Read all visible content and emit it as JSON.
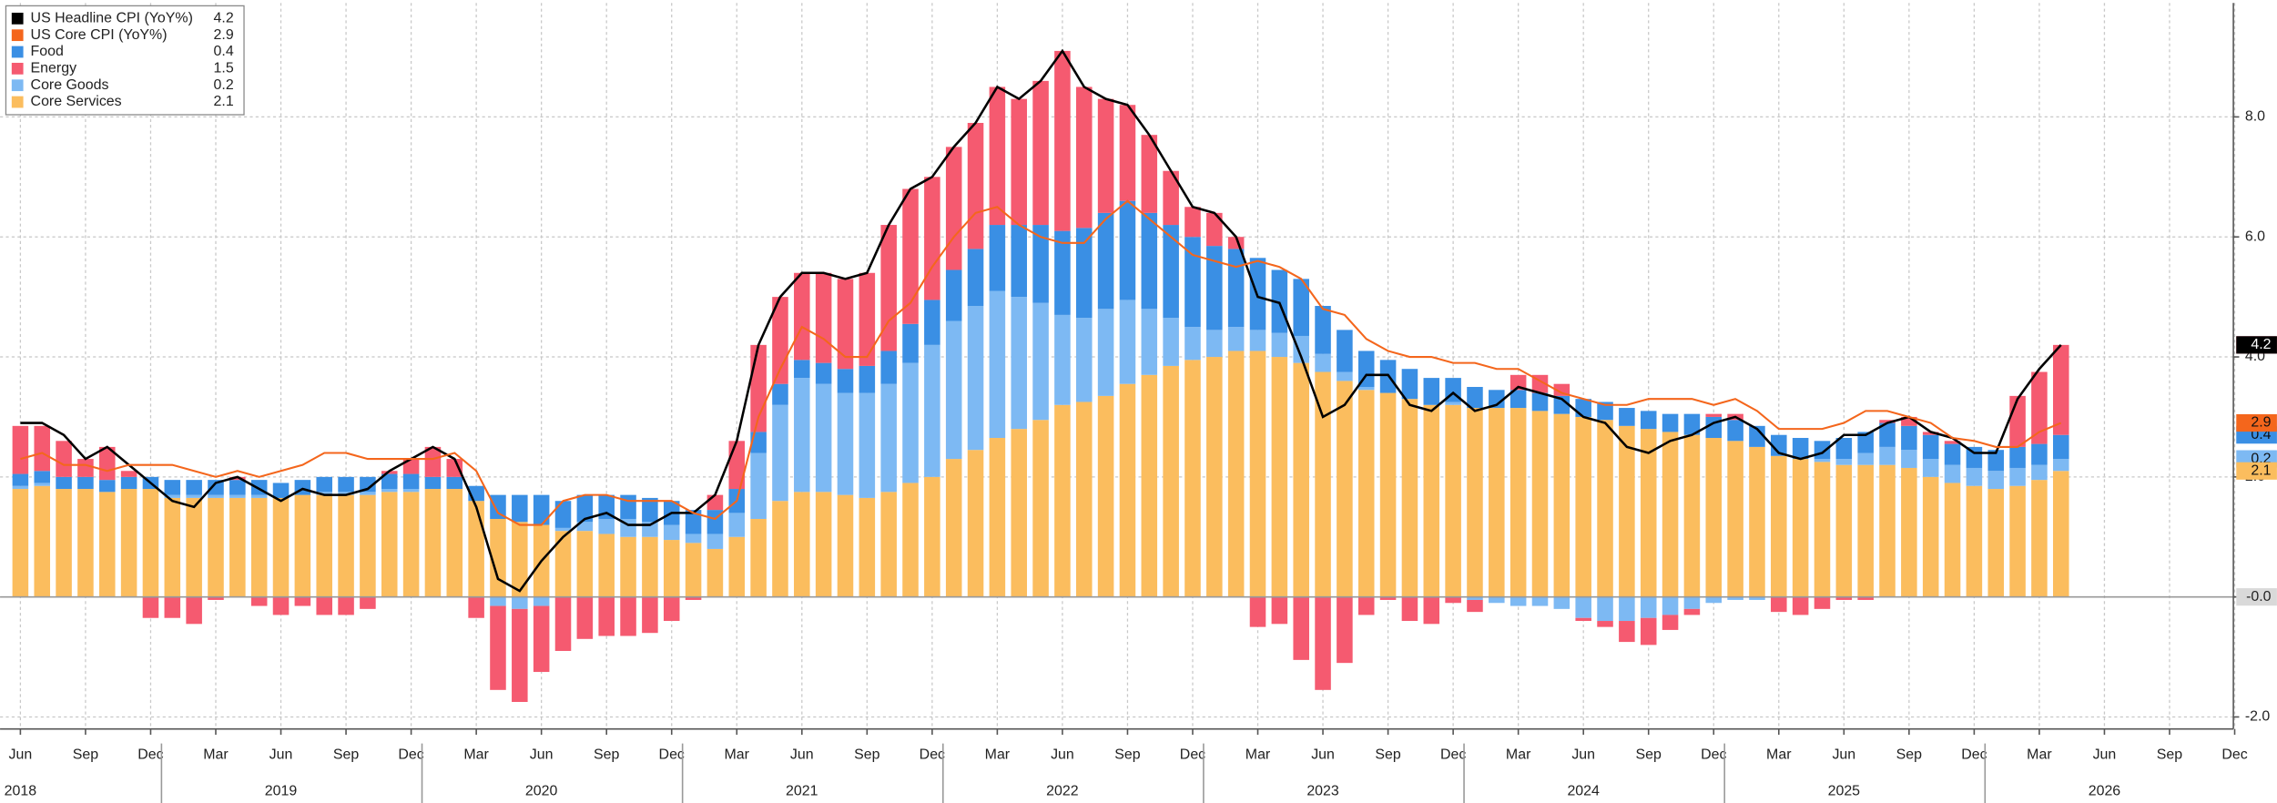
{
  "chart_data": {
    "type": "bar",
    "categories": [
      "2018-06",
      "2018-07",
      "2018-08",
      "2018-09",
      "2018-10",
      "2018-11",
      "2018-12",
      "2019-01",
      "2019-02",
      "2019-03",
      "2019-04",
      "2019-05",
      "2019-06",
      "2019-07",
      "2019-08",
      "2019-09",
      "2019-10",
      "2019-11",
      "2019-12",
      "2020-01",
      "2020-02",
      "2020-03",
      "2020-04",
      "2020-05",
      "2020-06",
      "2020-07",
      "2020-08",
      "2020-09",
      "2020-10",
      "2020-11",
      "2020-12",
      "2021-01",
      "2021-02",
      "2021-03",
      "2021-04",
      "2021-05",
      "2021-06",
      "2021-07",
      "2021-08",
      "2021-09",
      "2021-10",
      "2021-11",
      "2021-12",
      "2022-01",
      "2022-02",
      "2022-03",
      "2022-04",
      "2022-05",
      "2022-06",
      "2022-07",
      "2022-08",
      "2022-09",
      "2022-10",
      "2022-11",
      "2022-12",
      "2023-01",
      "2023-02",
      "2023-03",
      "2023-04",
      "2023-05",
      "2023-06",
      "2023-07",
      "2023-08",
      "2023-09",
      "2023-10",
      "2023-11",
      "2023-12",
      "2024-01",
      "2024-02",
      "2024-03",
      "2024-04",
      "2024-05",
      "2024-06",
      "2024-07",
      "2024-08",
      "2024-09",
      "2024-10",
      "2024-11",
      "2024-12",
      "2025-01",
      "2025-02",
      "2025-03",
      "2025-04",
      "2025-05",
      "2025-06",
      "2025-07",
      "2025-08",
      "2025-09",
      "2025-10",
      "2025-11",
      "2025-12",
      "2026-01",
      "2026-02",
      "2026-03",
      "2026-04",
      "2026-05",
      "2026-06",
      "2026-07",
      "2026-08",
      "2026-09",
      "2026-10",
      "2026-11",
      "2026-12"
    ],
    "series": [
      {
        "name": "US Headline CPI (YoY%)",
        "type": "line",
        "color": "#000000",
        "last_label": "4.2",
        "values": [
          2.9,
          2.9,
          2.7,
          2.3,
          2.5,
          2.2,
          1.9,
          1.6,
          1.5,
          1.9,
          2.0,
          1.8,
          1.6,
          1.8,
          1.7,
          1.7,
          1.8,
          2.1,
          2.3,
          2.5,
          2.3,
          1.5,
          0.3,
          0.1,
          0.6,
          1.0,
          1.3,
          1.4,
          1.2,
          1.2,
          1.4,
          1.4,
          1.7,
          2.6,
          4.2,
          5.0,
          5.4,
          5.4,
          5.3,
          5.4,
          6.2,
          6.8,
          7.0,
          7.5,
          7.9,
          8.5,
          8.3,
          8.6,
          9.1,
          8.5,
          8.3,
          8.2,
          7.7,
          7.1,
          6.5,
          6.4,
          6.0,
          5.0,
          4.9,
          4.0,
          3.0,
          3.2,
          3.7,
          3.7,
          3.2,
          3.1,
          3.4,
          3.1,
          3.2,
          3.5,
          3.4,
          3.3,
          3.0,
          2.9,
          2.5,
          2.4,
          2.6,
          2.7,
          2.9,
          3.0,
          2.8,
          2.4,
          2.3,
          2.4,
          2.7,
          2.7,
          2.9,
          3.0,
          2.75,
          2.65,
          2.4,
          2.4,
          3.3,
          3.8,
          4.2,
          null,
          null,
          null,
          null,
          null,
          null,
          null,
          null
        ]
      },
      {
        "name": "US Core CPI (YoY%)",
        "type": "line",
        "color": "#f4661c",
        "last_label": "2.9",
        "values": [
          2.3,
          2.4,
          2.2,
          2.2,
          2.1,
          2.2,
          2.2,
          2.2,
          2.1,
          2.0,
          2.1,
          2.0,
          2.1,
          2.2,
          2.4,
          2.4,
          2.3,
          2.3,
          2.3,
          2.3,
          2.4,
          2.1,
          1.4,
          1.2,
          1.2,
          1.6,
          1.7,
          1.7,
          1.6,
          1.6,
          1.6,
          1.4,
          1.3,
          1.6,
          3.0,
          3.8,
          4.5,
          4.3,
          4.0,
          4.0,
          4.6,
          4.9,
          5.5,
          6.0,
          6.4,
          6.5,
          6.2,
          6.0,
          5.9,
          5.9,
          6.3,
          6.6,
          6.3,
          6.0,
          5.7,
          5.6,
          5.5,
          5.6,
          5.5,
          5.3,
          4.8,
          4.7,
          4.3,
          4.1,
          4.0,
          4.0,
          3.9,
          3.9,
          3.8,
          3.8,
          3.6,
          3.4,
          3.3,
          3.2,
          3.2,
          3.3,
          3.3,
          3.3,
          3.2,
          3.3,
          3.1,
          2.8,
          2.8,
          2.8,
          2.9,
          3.1,
          3.1,
          3.0,
          2.9,
          2.65,
          2.6,
          2.5,
          2.5,
          2.75,
          2.9,
          null,
          null,
          null,
          null,
          null,
          null,
          null,
          null
        ]
      },
      {
        "name": "Food",
        "type": "bar",
        "color": "#3a8fe4",
        "last_label": "0.4",
        "values": [
          0.2,
          0.2,
          0.2,
          0.2,
          0.2,
          0.2,
          0.2,
          0.25,
          0.25,
          0.25,
          0.25,
          0.25,
          0.25,
          0.25,
          0.25,
          0.25,
          0.25,
          0.25,
          0.25,
          0.2,
          0.2,
          0.25,
          0.4,
          0.45,
          0.5,
          0.45,
          0.45,
          0.4,
          0.4,
          0.4,
          0.4,
          0.4,
          0.4,
          0.4,
          0.35,
          0.35,
          0.3,
          0.35,
          0.4,
          0.45,
          0.55,
          0.65,
          0.75,
          0.85,
          0.95,
          1.1,
          1.2,
          1.3,
          1.4,
          1.5,
          1.6,
          1.65,
          1.6,
          1.55,
          1.5,
          1.4,
          1.3,
          1.2,
          1.05,
          0.95,
          0.8,
          0.7,
          0.6,
          0.55,
          0.5,
          0.45,
          0.4,
          0.35,
          0.3,
          0.3,
          0.3,
          0.3,
          0.3,
          0.3,
          0.3,
          0.3,
          0.3,
          0.35,
          0.35,
          0.35,
          0.35,
          0.35,
          0.35,
          0.3,
          0.35,
          0.35,
          0.4,
          0.4,
          0.4,
          0.35,
          0.35,
          0.35,
          0.35,
          0.35,
          0.4,
          null,
          null,
          null,
          null,
          null,
          null,
          null,
          null
        ]
      },
      {
        "name": "Energy",
        "type": "bar",
        "color": "#f55a70",
        "last_label": "1.5",
        "values": [
          0.8,
          0.75,
          0.6,
          0.3,
          0.55,
          0.1,
          -0.35,
          -0.35,
          -0.45,
          -0.05,
          0.05,
          -0.15,
          -0.3,
          -0.15,
          -0.3,
          -0.3,
          -0.2,
          0.05,
          0.25,
          0.5,
          0.3,
          -0.35,
          -1.4,
          -1.55,
          -1.1,
          -0.9,
          -0.7,
          -0.65,
          -0.65,
          -0.6,
          -0.4,
          -0.05,
          0.25,
          0.8,
          1.45,
          1.45,
          1.45,
          1.5,
          1.5,
          1.55,
          2.1,
          2.25,
          2.05,
          2.05,
          2.1,
          2.3,
          2.1,
          2.4,
          3.0,
          2.35,
          1.9,
          1.6,
          1.3,
          0.9,
          0.5,
          0.55,
          0.2,
          -0.5,
          -0.45,
          -1.05,
          -1.55,
          -1.1,
          -0.3,
          -0.05,
          -0.4,
          -0.45,
          -0.1,
          -0.2,
          0.0,
          0.25,
          0.3,
          0.2,
          -0.05,
          -0.1,
          -0.35,
          -0.45,
          -0.25,
          -0.1,
          0.05,
          0.1,
          0.0,
          -0.25,
          -0.3,
          -0.2,
          -0.05,
          -0.05,
          0.05,
          0.15,
          0.05,
          0.05,
          0.0,
          0.0,
          0.85,
          1.2,
          1.5,
          null,
          null,
          null,
          null,
          null,
          null,
          null,
          null
        ]
      },
      {
        "name": "Core Goods",
        "type": "bar",
        "color": "#7db9f3",
        "last_label": "0.2",
        "values": [
          0.05,
          0.05,
          0.0,
          0.0,
          0.0,
          0.0,
          0.0,
          0.05,
          0.05,
          0.05,
          0.05,
          0.05,
          0.0,
          0.0,
          0.05,
          0.05,
          0.05,
          0.05,
          0.05,
          0.0,
          0.0,
          0.0,
          -0.15,
          -0.2,
          -0.15,
          0.05,
          0.15,
          0.25,
          0.3,
          0.25,
          0.25,
          0.15,
          0.25,
          0.4,
          1.1,
          1.6,
          1.9,
          1.8,
          1.7,
          1.75,
          1.8,
          2.0,
          2.2,
          2.3,
          2.4,
          2.45,
          2.2,
          1.95,
          1.5,
          1.4,
          1.45,
          1.4,
          1.1,
          0.8,
          0.55,
          0.45,
          0.4,
          0.35,
          0.4,
          0.45,
          0.3,
          0.15,
          0.05,
          0.0,
          0.0,
          0.0,
          0.05,
          -0.05,
          -0.1,
          -0.15,
          -0.15,
          -0.2,
          -0.35,
          -0.4,
          -0.4,
          -0.35,
          -0.3,
          -0.2,
          -0.1,
          -0.05,
          -0.05,
          0.0,
          0.0,
          0.05,
          0.1,
          0.2,
          0.3,
          0.3,
          0.3,
          0.3,
          0.3,
          0.3,
          0.3,
          0.25,
          0.2,
          null,
          null,
          null,
          null,
          null,
          null,
          null,
          null
        ]
      },
      {
        "name": "Core Services",
        "type": "bar",
        "color": "#fbbd5e",
        "last_label": "2.1",
        "values": [
          1.8,
          1.85,
          1.8,
          1.8,
          1.75,
          1.8,
          1.8,
          1.65,
          1.65,
          1.65,
          1.65,
          1.65,
          1.65,
          1.7,
          1.7,
          1.7,
          1.7,
          1.75,
          1.75,
          1.8,
          1.8,
          1.6,
          1.3,
          1.25,
          1.2,
          1.1,
          1.1,
          1.05,
          1.0,
          1.0,
          0.95,
          0.9,
          0.8,
          1.0,
          1.3,
          1.6,
          1.75,
          1.75,
          1.7,
          1.65,
          1.75,
          1.9,
          2.0,
          2.3,
          2.45,
          2.65,
          2.8,
          2.95,
          3.2,
          3.25,
          3.35,
          3.55,
          3.7,
          3.85,
          3.95,
          4.0,
          4.1,
          4.1,
          4.0,
          3.9,
          3.75,
          3.6,
          3.45,
          3.4,
          3.3,
          3.2,
          3.2,
          3.15,
          3.15,
          3.15,
          3.1,
          3.05,
          3.0,
          2.95,
          2.85,
          2.8,
          2.75,
          2.7,
          2.65,
          2.6,
          2.5,
          2.35,
          2.3,
          2.25,
          2.2,
          2.2,
          2.2,
          2.15,
          2.0,
          1.9,
          1.85,
          1.8,
          1.85,
          1.95,
          2.1,
          null,
          null,
          null,
          null,
          null,
          null,
          null,
          null
        ]
      }
    ],
    "stack_order": [
      5,
      4,
      2,
      3
    ],
    "ylim": [
      -2.2,
      9.9
    ],
    "yticks": [
      {
        "value": -2,
        "label": "-2.0"
      },
      {
        "value": 0,
        "label": "0.0"
      },
      {
        "value": 2,
        "label": "2.0"
      },
      {
        "value": 4,
        "label": "4.0"
      },
      {
        "value": 6,
        "label": "6.0"
      },
      {
        "value": 8,
        "label": "8.0"
      }
    ],
    "xticks": [
      {
        "value": "2018-06",
        "label": "Jun"
      },
      {
        "value": "2018-09",
        "label": "Sep"
      },
      {
        "value": "2018-12",
        "label": "Dec"
      },
      {
        "value": "2019-03",
        "label": "Mar"
      },
      {
        "value": "2019-06",
        "label": "Jun"
      },
      {
        "value": "2019-09",
        "label": "Sep"
      },
      {
        "value": "2019-12",
        "label": "Dec"
      },
      {
        "value": "2020-03",
        "label": "Mar"
      },
      {
        "value": "2020-06",
        "label": "Jun"
      },
      {
        "value": "2020-09",
        "label": "Sep"
      },
      {
        "value": "2020-12",
        "label": "Dec"
      },
      {
        "value": "2021-03",
        "label": "Mar"
      },
      {
        "value": "2021-06",
        "label": "Jun"
      },
      {
        "value": "2021-09",
        "label": "Sep"
      },
      {
        "value": "2021-12",
        "label": "Dec"
      },
      {
        "value": "2022-03",
        "label": "Mar"
      },
      {
        "value": "2022-06",
        "label": "Jun"
      },
      {
        "value": "2022-09",
        "label": "Sep"
      },
      {
        "value": "2022-12",
        "label": "Dec"
      },
      {
        "value": "2023-03",
        "label": "Mar"
      },
      {
        "value": "2023-06",
        "label": "Jun"
      },
      {
        "value": "2023-09",
        "label": "Sep"
      },
      {
        "value": "2023-12",
        "label": "Dec"
      },
      {
        "value": "2024-03",
        "label": "Mar"
      },
      {
        "value": "2024-06",
        "label": "Jun"
      },
      {
        "value": "2024-09",
        "label": "Sep"
      },
      {
        "value": "2024-12",
        "label": "Dec"
      },
      {
        "value": "2025-03",
        "label": "Mar"
      },
      {
        "value": "2025-06",
        "label": "Jun"
      },
      {
        "value": "2025-09",
        "label": "Sep"
      },
      {
        "value": "2025-12",
        "label": "Dec"
      },
      {
        "value": "2026-03",
        "label": "Mar"
      },
      {
        "value": "2026-06",
        "label": "Jun"
      },
      {
        "value": "2026-09",
        "label": "Sep"
      },
      {
        "value": "2026-12",
        "label": "Dec"
      }
    ],
    "year_ticks": [
      {
        "value": "2018-06",
        "label": "2018"
      },
      {
        "value": "2019-06",
        "label": "2019"
      },
      {
        "value": "2020-06",
        "label": "2020"
      },
      {
        "value": "2021-06",
        "label": "2021"
      },
      {
        "value": "2022-06",
        "label": "2022"
      },
      {
        "value": "2023-06",
        "label": "2023"
      },
      {
        "value": "2024-06",
        "label": "2024"
      },
      {
        "value": "2025-06",
        "label": "2025"
      },
      {
        "value": "2026-06",
        "label": "2026"
      }
    ],
    "zero_tag": "-0.0",
    "grid": true,
    "legend": "upper left"
  }
}
